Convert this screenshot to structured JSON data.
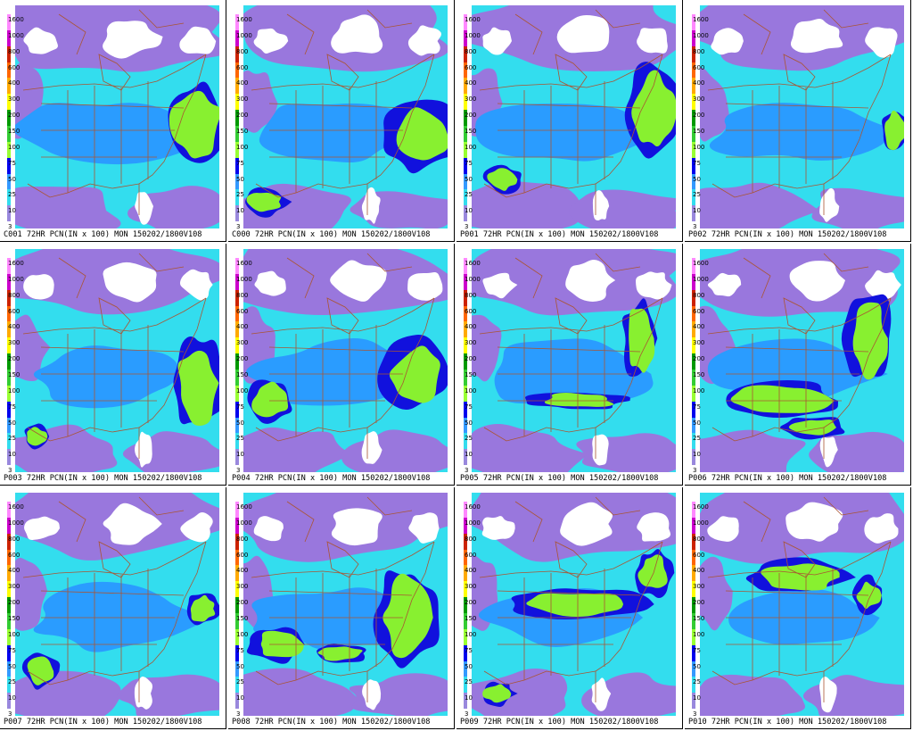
{
  "panels": [
    {
      "member": "C001",
      "caption": "C001 72HR PCN(IN x 100) MON 150202/1800V108"
    },
    {
      "member": "C000",
      "caption": "C000 72HR PCN(IN x 100) MON 150202/1800V108"
    },
    {
      "member": "P001",
      "caption": "P001 72HR PCN(IN x 100) MON 150202/1800V108"
    },
    {
      "member": "P002",
      "caption": "P002 72HR PCN(IN x 100) MON 150202/1800V108"
    },
    {
      "member": "P003",
      "caption": "P003 72HR PCN(IN x 100) MON 150202/1800V108"
    },
    {
      "member": "P004",
      "caption": "P004 72HR PCN(IN x 100) MON 150202/1800V108"
    },
    {
      "member": "P005",
      "caption": "P005 72HR PCN(IN x 100) MON 150202/1800V108"
    },
    {
      "member": "P006",
      "caption": "P006 72HR PCN(IN x 100) MON 150202/1800V108"
    },
    {
      "member": "P007",
      "caption": "P007 72HR PCN(IN x 100) MON 150202/1800V108"
    },
    {
      "member": "P008",
      "caption": "P008 72HR PCN(IN x 100) MON 150202/1800V108"
    },
    {
      "member": "P009",
      "caption": "P009 72HR PCN(IN x 100) MON 150202/1800V108"
    },
    {
      "member": "P010",
      "caption": "P010 72HR PCN(IN x 100) MON 150202/1800V108"
    }
  ],
  "legend": {
    "levels": [
      "1600",
      "1000",
      "800",
      "600",
      "400",
      "300",
      "200",
      "150",
      "100",
      "75",
      "50",
      "25",
      "10",
      "3"
    ],
    "colors": [
      "#ff88ff",
      "#cc00cc",
      "#cc2200",
      "#ff6600",
      "#ffaa00",
      "#ffff00",
      "#009900",
      "#33cc33",
      "#99ff33",
      "#0000ee",
      "#3399ff",
      "#33ddee",
      "#9988dd",
      "#ffffff"
    ]
  },
  "colors": {
    "background_field": "#33ddee",
    "light": "#9977dd",
    "none": "#ffffff",
    "moderate": "#2a9cff",
    "heavy": "#1111dd",
    "very_heavy": "#88f030",
    "border": "#aa5533"
  }
}
